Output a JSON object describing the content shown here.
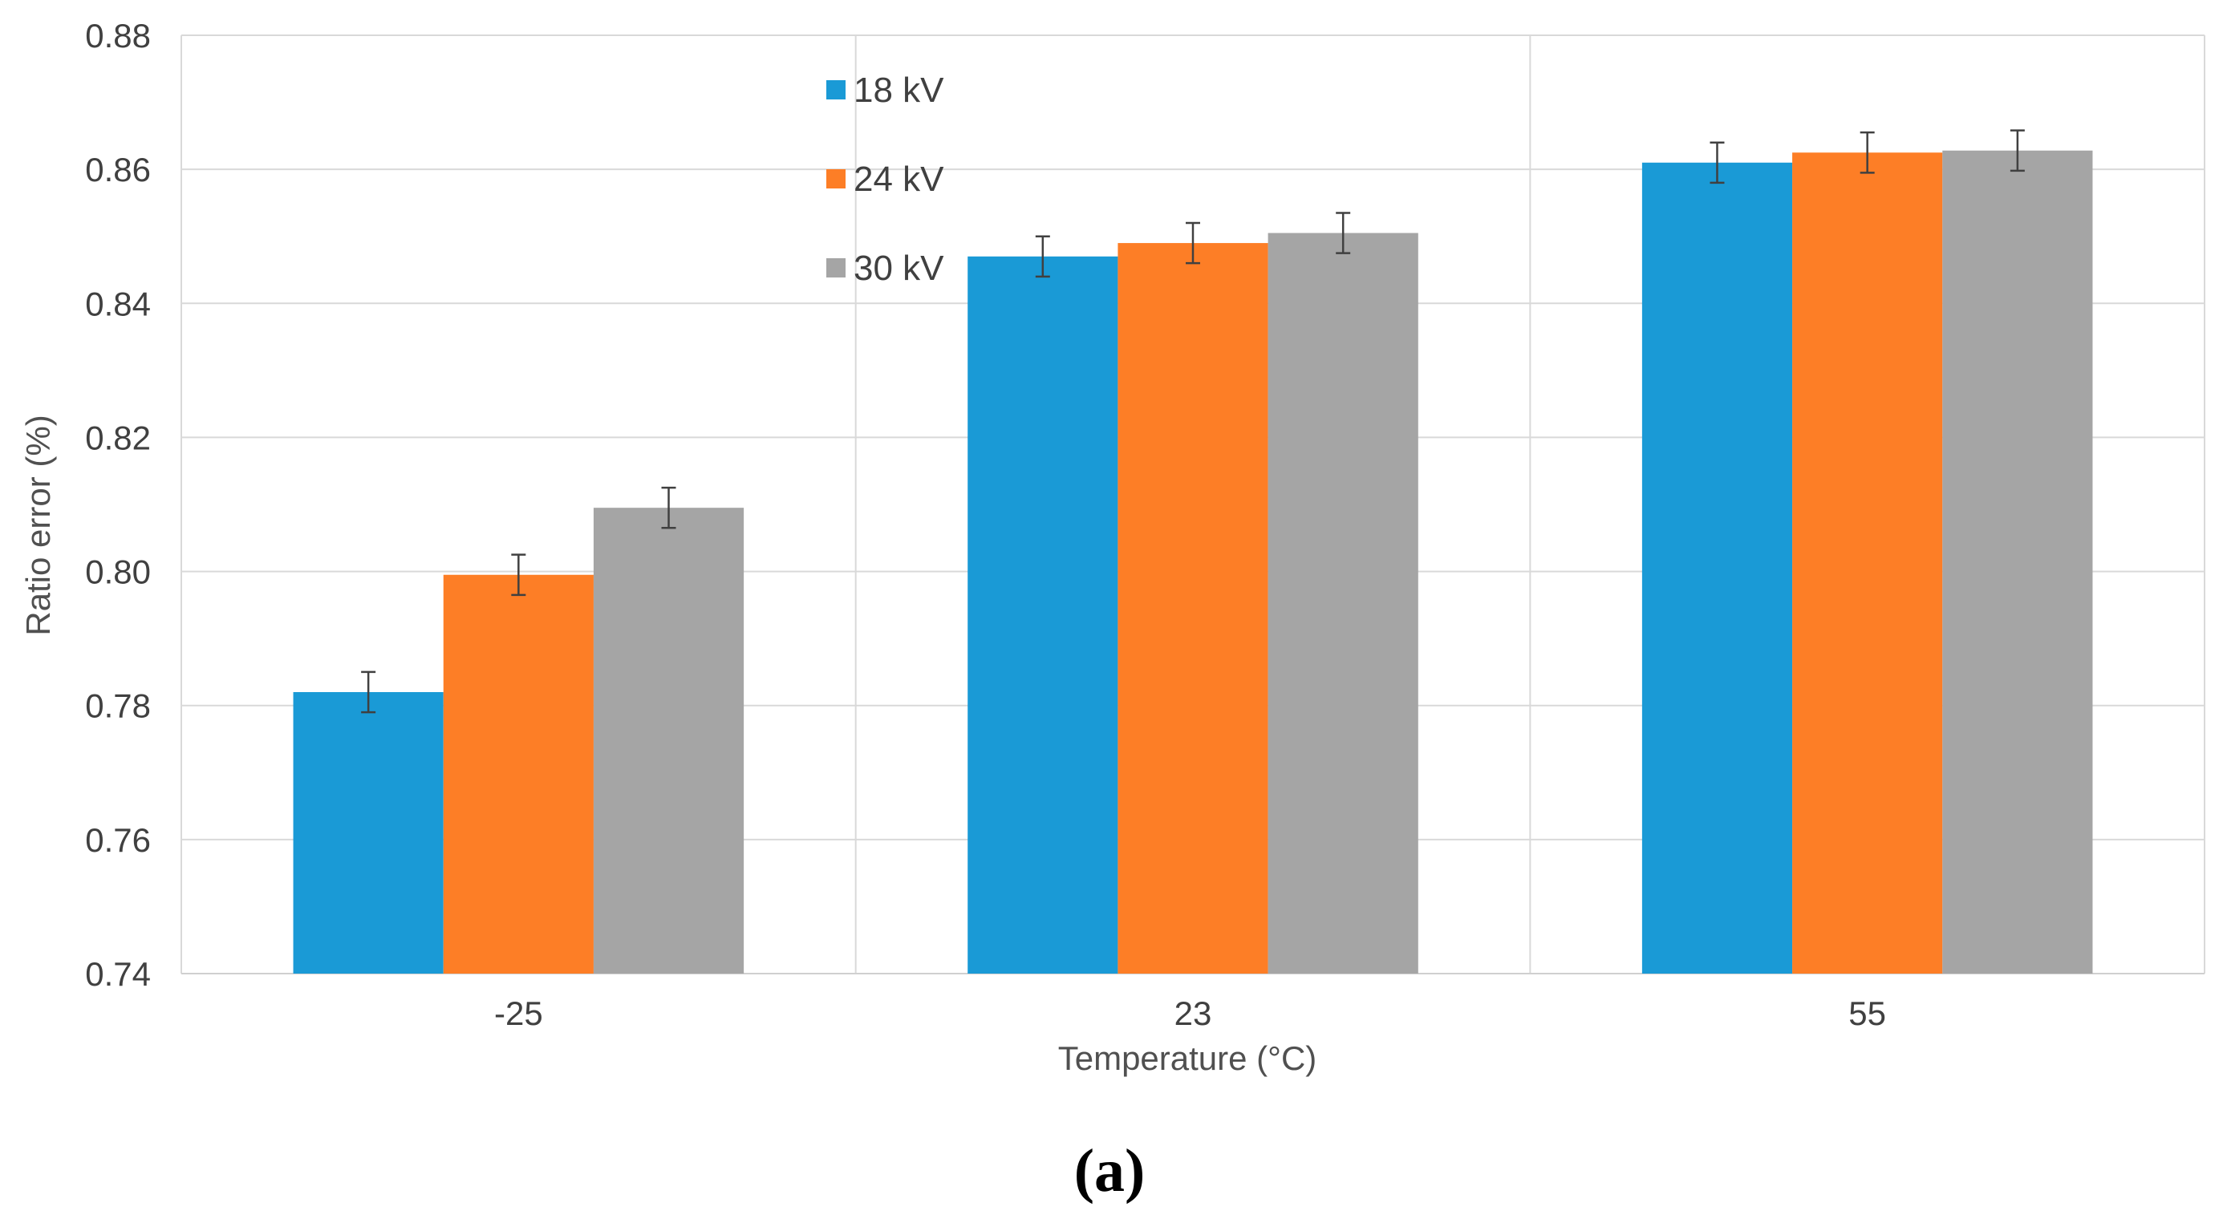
{
  "chart_data": {
    "type": "bar",
    "title": "",
    "xlabel": "Temperature (°C)",
    "ylabel": "Ratio error (%)",
    "categories": [
      "-25",
      "23",
      "55"
    ],
    "ylim": [
      0.74,
      0.88
    ],
    "yticks": [
      "0.74",
      "0.76",
      "0.78",
      "0.80",
      "0.82",
      "0.84",
      "0.86",
      "0.88"
    ],
    "grid": true,
    "legend_position": "top-center",
    "error_bars": true,
    "error_half_width": 0.003,
    "series": [
      {
        "name": "18 kV",
        "color": "#1a9ad6",
        "values": [
          0.782,
          0.847,
          0.861
        ]
      },
      {
        "name": "24 kV",
        "color": "#fd7e26",
        "values": [
          0.7995,
          0.849,
          0.8625
        ]
      },
      {
        "name": "30 kV",
        "color": "#a5a5a5",
        "values": [
          0.8095,
          0.8505,
          0.8628
        ]
      }
    ]
  },
  "panel_label": "(a)"
}
